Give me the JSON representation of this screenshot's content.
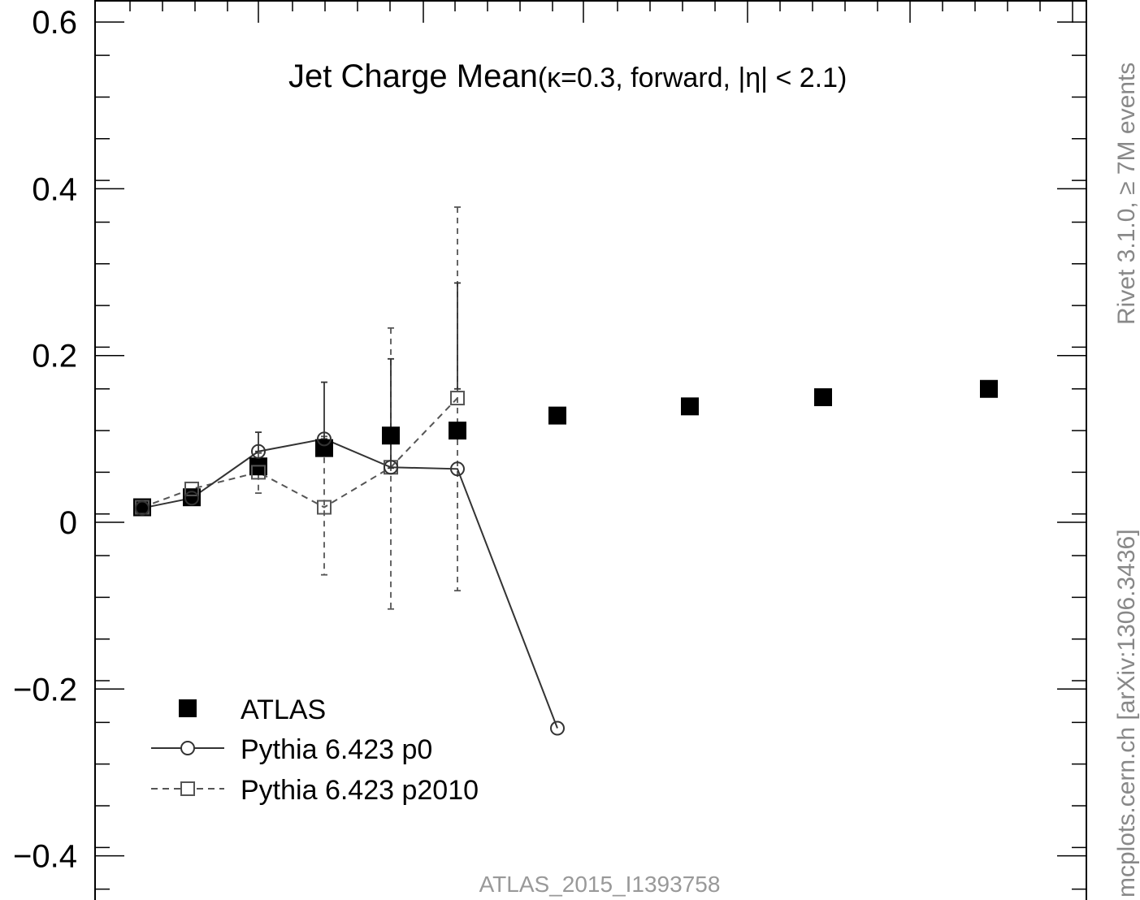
{
  "chart_data": {
    "type": "scatter",
    "title_main": "Jet Charge Mean",
    "title_params": "(κ=0.3, forward, |η| < 2.1)",
    "xlabel": "",
    "ylabel": "",
    "ylim": [
      -0.44,
      0.62
    ],
    "yticks": [
      0.6,
      0.4,
      0.2,
      0,
      -0.2,
      -0.4
    ],
    "ytick_labels": [
      "0.6",
      "0.4",
      "0.2",
      "0",
      "−0.2",
      "−0.4"
    ],
    "legend_position": "bottom-left",
    "grid": false,
    "series": [
      {
        "name": "ATLAS",
        "style": "filled-square",
        "color": "#000000",
        "x": [
          1,
          2,
          3,
          4,
          5,
          6,
          7,
          8,
          9,
          10
        ],
        "y": [
          0.018,
          0.03,
          0.067,
          0.089,
          0.104,
          0.11,
          0.128,
          0.139,
          0.15,
          0.16
        ]
      },
      {
        "name": "Pythia 6.423 p0",
        "style": "open-circle-solid",
        "color": "#333333",
        "x": [
          1,
          2,
          3,
          4,
          5,
          6,
          7
        ],
        "y": [
          0.017,
          0.029,
          0.085,
          0.1,
          0.066,
          0.064,
          -0.247
        ],
        "err_lo": [
          null,
          null,
          0.085,
          null,
          0.065,
          0.16,
          null
        ],
        "err_hi": [
          null,
          null,
          0.108,
          0.168,
          0.196,
          0.287,
          null
        ]
      },
      {
        "name": "Pythia 6.423 p2010",
        "style": "open-square-dashed",
        "color": "#555555",
        "x": [
          1,
          2,
          3,
          4,
          5,
          6
        ],
        "y": [
          0.018,
          0.04,
          0.06,
          0.018,
          0.066,
          0.149
        ],
        "err_lo": [
          null,
          null,
          0.035,
          -0.063,
          -0.104,
          -0.082
        ],
        "err_hi": [
          null,
          null,
          0.083,
          0.103,
          0.233,
          0.378
        ]
      }
    ]
  },
  "annotations": {
    "analysis_id": "ATLAS_2015_I1393758",
    "rivet_label": "Rivet 3.1.0, ≥ 7M events",
    "mcplots_label": "mcplots.cern.ch [arXiv:1306.3436]"
  }
}
